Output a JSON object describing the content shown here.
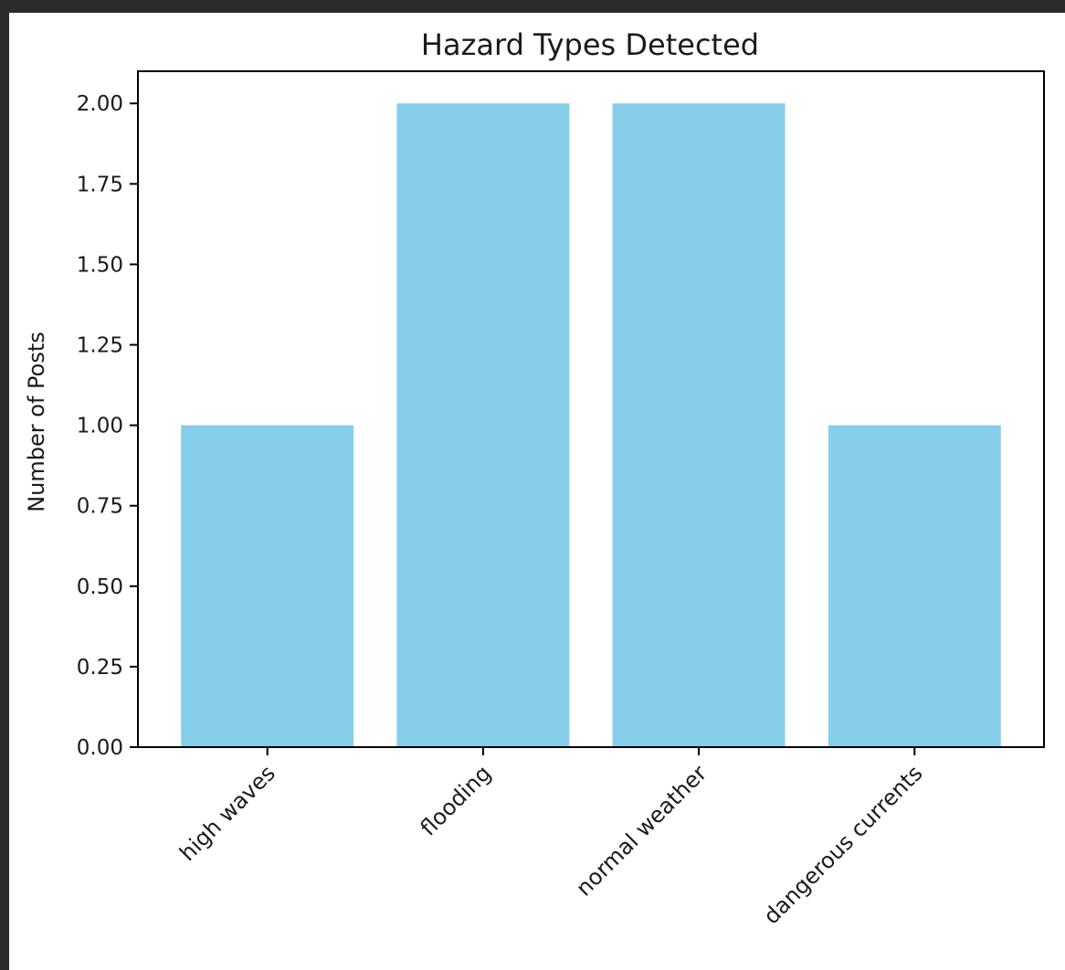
{
  "colors": {
    "frame_background": "#2b2b2b",
    "figure_background": "#ffffff",
    "bar": "#87ceeb",
    "axis": "#000000",
    "text": "#1a1a1a"
  },
  "chart_data": {
    "type": "bar",
    "title": "Hazard Types Detected",
    "xlabel": "",
    "ylabel": "Number of Posts",
    "categories": [
      "high waves",
      "flooding",
      "normal weather",
      "dangerous currents"
    ],
    "values": [
      1,
      2,
      2,
      1
    ],
    "ylim": [
      0,
      2.1
    ],
    "yticks": [
      0.0,
      0.25,
      0.5,
      0.75,
      1.0,
      1.25,
      1.5,
      1.75,
      2.0
    ],
    "ytick_labels": [
      "0.00",
      "0.25",
      "0.50",
      "0.75",
      "1.00",
      "1.25",
      "1.50",
      "1.75",
      "2.00"
    ],
    "xtick_rotation_deg": 45,
    "grid": false,
    "legend": "none"
  }
}
